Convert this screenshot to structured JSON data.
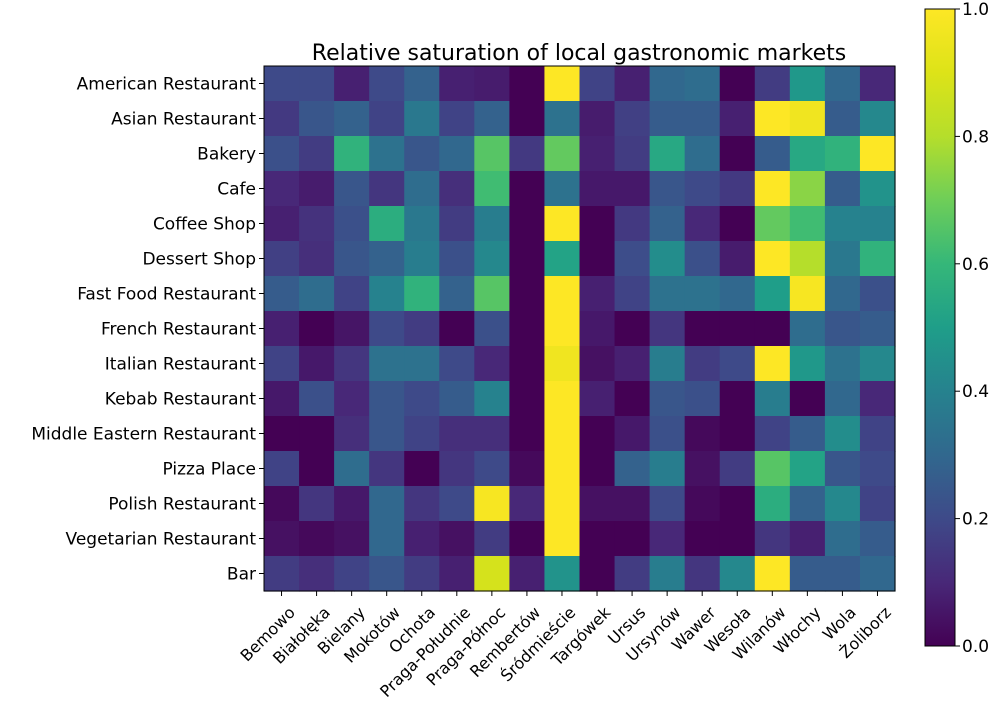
{
  "chart_data": {
    "type": "heatmap",
    "title": "Relative saturation of local gastronomic markets",
    "colormap": "viridis",
    "vmin": 0,
    "vmax": 1,
    "colorbar_ticks": [
      "0.0",
      "0.2",
      "0.4",
      "0.6",
      "0.8",
      "1.0"
    ],
    "rows": [
      "American Restaurant",
      "Asian Restaurant",
      "Bakery",
      "Cafe",
      "Coffee Shop",
      "Dessert Shop",
      "Fast Food Restaurant",
      "French Restaurant",
      "Italian Restaurant",
      "Kebab Restaurant",
      "Middle Eastern Restaurant",
      "Pizza Place",
      "Polish Restaurant",
      "Vegetarian Restaurant",
      "Bar"
    ],
    "columns": [
      "Bemowo",
      "Białołęka",
      "Bielany",
      "Mokotów",
      "Ochota",
      "Praga-Południe",
      "Praga-Północ",
      "Rembertów",
      "Śródmieście",
      "Targówek",
      "Ursus",
      "Ursynów",
      "Wawer",
      "Wesoła",
      "Wilanów",
      "Włochy",
      "Wola",
      "Żoliborz"
    ],
    "values": [
      [
        0.2,
        0.2,
        0.08,
        0.2,
        0.28,
        0.08,
        0.07,
        0.0,
        1.0,
        0.18,
        0.08,
        0.3,
        0.32,
        0.0,
        0.16,
        0.48,
        0.3,
        0.1
      ],
      [
        0.15,
        0.24,
        0.28,
        0.18,
        0.36,
        0.18,
        0.28,
        0.0,
        0.34,
        0.07,
        0.17,
        0.26,
        0.26,
        0.08,
        1.0,
        0.96,
        0.26,
        0.42
      ],
      [
        0.22,
        0.16,
        0.58,
        0.34,
        0.24,
        0.3,
        0.66,
        0.15,
        0.68,
        0.08,
        0.16,
        0.54,
        0.32,
        0.0,
        0.26,
        0.54,
        0.58,
        1.0
      ],
      [
        0.1,
        0.07,
        0.24,
        0.14,
        0.32,
        0.12,
        0.62,
        0.0,
        0.34,
        0.06,
        0.06,
        0.24,
        0.2,
        0.15,
        1.0,
        0.74,
        0.26,
        0.46
      ],
      [
        0.08,
        0.13,
        0.22,
        0.56,
        0.36,
        0.16,
        0.38,
        0.0,
        1.0,
        0.0,
        0.15,
        0.28,
        0.1,
        0.0,
        0.68,
        0.62,
        0.4,
        0.4
      ],
      [
        0.17,
        0.12,
        0.24,
        0.28,
        0.38,
        0.22,
        0.42,
        0.0,
        0.52,
        0.0,
        0.21,
        0.44,
        0.22,
        0.07,
        1.0,
        0.8,
        0.36,
        0.58
      ],
      [
        0.26,
        0.32,
        0.18,
        0.4,
        0.58,
        0.28,
        0.66,
        0.0,
        1.0,
        0.08,
        0.18,
        0.34,
        0.34,
        0.3,
        0.5,
        0.98,
        0.3,
        0.22
      ],
      [
        0.08,
        0.0,
        0.05,
        0.2,
        0.16,
        0.0,
        0.22,
        0.0,
        1.0,
        0.06,
        0.0,
        0.14,
        0.0,
        0.0,
        0.0,
        0.32,
        0.24,
        0.26
      ],
      [
        0.18,
        0.06,
        0.14,
        0.34,
        0.34,
        0.2,
        0.1,
        0.0,
        0.96,
        0.04,
        0.08,
        0.38,
        0.16,
        0.2,
        1.0,
        0.48,
        0.34,
        0.42
      ],
      [
        0.06,
        0.22,
        0.1,
        0.24,
        0.2,
        0.26,
        0.4,
        0.0,
        1.0,
        0.08,
        0.0,
        0.24,
        0.22,
        0.0,
        0.38,
        0.0,
        0.3,
        0.1
      ],
      [
        0.0,
        0.0,
        0.12,
        0.24,
        0.18,
        0.12,
        0.12,
        0.0,
        1.0,
        0.0,
        0.06,
        0.22,
        0.02,
        0.0,
        0.18,
        0.26,
        0.44,
        0.18
      ],
      [
        0.18,
        0.0,
        0.32,
        0.14,
        0.0,
        0.14,
        0.2,
        0.02,
        1.0,
        0.0,
        0.28,
        0.38,
        0.04,
        0.16,
        0.66,
        0.52,
        0.24,
        0.2
      ],
      [
        0.02,
        0.14,
        0.06,
        0.3,
        0.14,
        0.2,
        0.98,
        0.1,
        1.0,
        0.04,
        0.04,
        0.2,
        0.02,
        0.0,
        0.56,
        0.28,
        0.42,
        0.18
      ],
      [
        0.04,
        0.02,
        0.04,
        0.3,
        0.08,
        0.04,
        0.16,
        0.0,
        1.0,
        0.0,
        0.0,
        0.1,
        0.0,
        0.0,
        0.14,
        0.08,
        0.32,
        0.26
      ],
      [
        0.16,
        0.12,
        0.18,
        0.24,
        0.16,
        0.08,
        0.88,
        0.08,
        0.46,
        0.0,
        0.16,
        0.38,
        0.14,
        0.42,
        1.0,
        0.26,
        0.26,
        0.3
      ]
    ]
  }
}
